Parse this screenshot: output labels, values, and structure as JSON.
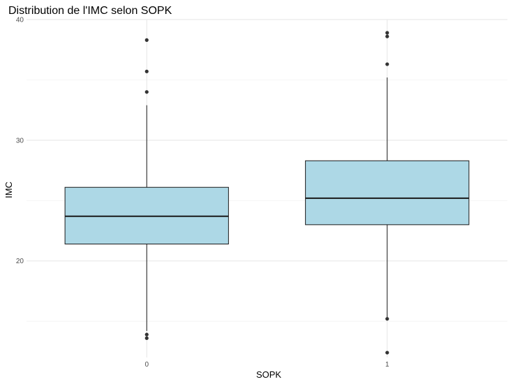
{
  "chart_data": {
    "type": "boxplot",
    "title": "Distribution de l'IMC selon SOPK",
    "xlabel": "SOPK",
    "ylabel": "IMC",
    "categories": [
      "0",
      "1"
    ],
    "ylim": [
      12,
      40
    ],
    "yticks": [
      20,
      30,
      40
    ],
    "grid": true,
    "box_fill": "#add8e6",
    "box_stroke": "#1a1a1a",
    "boxes": [
      {
        "category": "0",
        "whisker_low": 14.2,
        "q1": 21.4,
        "median": 23.7,
        "q3": 26.1,
        "whisker_high": 32.9,
        "outliers": [
          38.3,
          35.7,
          34.0,
          13.9,
          13.6
        ]
      },
      {
        "category": "1",
        "whisker_low": 15.3,
        "q1": 23.0,
        "median": 25.2,
        "q3": 28.3,
        "whisker_high": 35.2,
        "outliers": [
          38.9,
          38.6,
          36.3,
          15.2,
          12.4
        ]
      }
    ]
  }
}
